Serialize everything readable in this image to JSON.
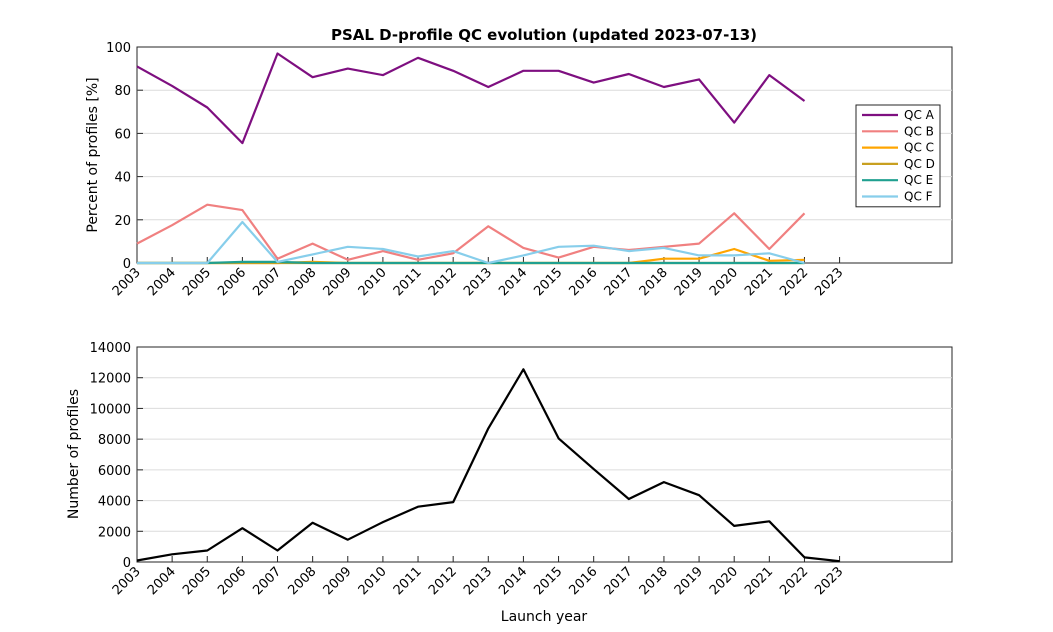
{
  "chart_data": [
    {
      "type": "line",
      "title": "PSAL D-profile QC evolution (updated 2023-07-13)",
      "xlabel": "",
      "ylabel": "Percent of profiles [%]",
      "xlim": [
        2003,
        2026.2
      ],
      "ylim": [
        0,
        100
      ],
      "yticks": [
        0,
        20,
        40,
        60,
        80,
        100
      ],
      "xticks": [
        "2003",
        "2004",
        "2005",
        "2006",
        "2007",
        "2008",
        "2009",
        "2010",
        "2011",
        "2012",
        "2013",
        "2014",
        "2015",
        "2016",
        "2017",
        "2018",
        "2019",
        "2020",
        "2021",
        "2022",
        "2023"
      ],
      "grid": "horizontal",
      "legend_position": "right",
      "x": [
        2003,
        2004,
        2005,
        2006,
        2007,
        2008,
        2009,
        2010,
        2011,
        2012,
        2013,
        2014,
        2015,
        2016,
        2017,
        2018,
        2019,
        2020,
        2021,
        2022
      ],
      "series": [
        {
          "name": "QC A",
          "color": "#7e0f80",
          "values": [
            91,
            82,
            72,
            55.5,
            97,
            86,
            90,
            87,
            95,
            89,
            81.5,
            89,
            89,
            83.5,
            87.5,
            81.5,
            85,
            65,
            87,
            75
          ]
        },
        {
          "name": "QC B",
          "color": "#f08080",
          "values": [
            9,
            17.5,
            27,
            24.5,
            2,
            9,
            1.5,
            5.5,
            1.5,
            4.5,
            17,
            7,
            2.5,
            7.5,
            6,
            7.5,
            9,
            23,
            6.5,
            23
          ]
        },
        {
          "name": "QC C",
          "color": "#ffa500",
          "values": [
            0,
            0,
            0,
            0,
            0,
            0.5,
            0,
            0,
            0,
            0,
            0,
            0,
            0,
            0,
            0,
            2,
            2,
            6.5,
            1,
            1.5
          ]
        },
        {
          "name": "QC D",
          "color": "#c8a020",
          "values": [
            0,
            0,
            0,
            0,
            0,
            0,
            0,
            0,
            0,
            0,
            0,
            0,
            0,
            0,
            0,
            0,
            0,
            0,
            0,
            0
          ]
        },
        {
          "name": "QC E",
          "color": "#20a090",
          "values": [
            0,
            0,
            0,
            0.5,
            0.5,
            0,
            0,
            0,
            0,
            0,
            0,
            0,
            0,
            0,
            0,
            0,
            0,
            0,
            0,
            0
          ]
        },
        {
          "name": "QC F",
          "color": "#87ceeb",
          "values": [
            0,
            0,
            0,
            19,
            0.5,
            4,
            7.5,
            6.5,
            3,
            5.5,
            0,
            3.5,
            7.5,
            8,
            5.5,
            7,
            3.5,
            3.5,
            4.5,
            0
          ]
        }
      ]
    },
    {
      "type": "line",
      "title": "",
      "xlabel": "Launch year",
      "ylabel": "Number of profiles",
      "xlim": [
        2003,
        2026.2
      ],
      "ylim": [
        0,
        14000
      ],
      "yticks": [
        0,
        2000,
        4000,
        6000,
        8000,
        10000,
        12000,
        14000
      ],
      "xticks": [
        "2003",
        "2004",
        "2005",
        "2006",
        "2007",
        "2008",
        "2009",
        "2010",
        "2011",
        "2012",
        "2013",
        "2014",
        "2015",
        "2016",
        "2017",
        "2018",
        "2019",
        "2020",
        "2021",
        "2022",
        "2023"
      ],
      "grid": "horizontal",
      "x": [
        2003,
        2004,
        2005,
        2006,
        2007,
        2008,
        2009,
        2010,
        2011,
        2012,
        2013,
        2014,
        2015,
        2016,
        2017,
        2018,
        2019,
        2020,
        2021,
        2022,
        2023
      ],
      "series": [
        {
          "color": "#000000",
          "values": [
            100,
            500,
            750,
            2200,
            750,
            2550,
            1450,
            2600,
            3600,
            3900,
            8700,
            12550,
            8050,
            6050,
            4100,
            5200,
            4350,
            2350,
            2650,
            300,
            50
          ]
        }
      ]
    }
  ]
}
